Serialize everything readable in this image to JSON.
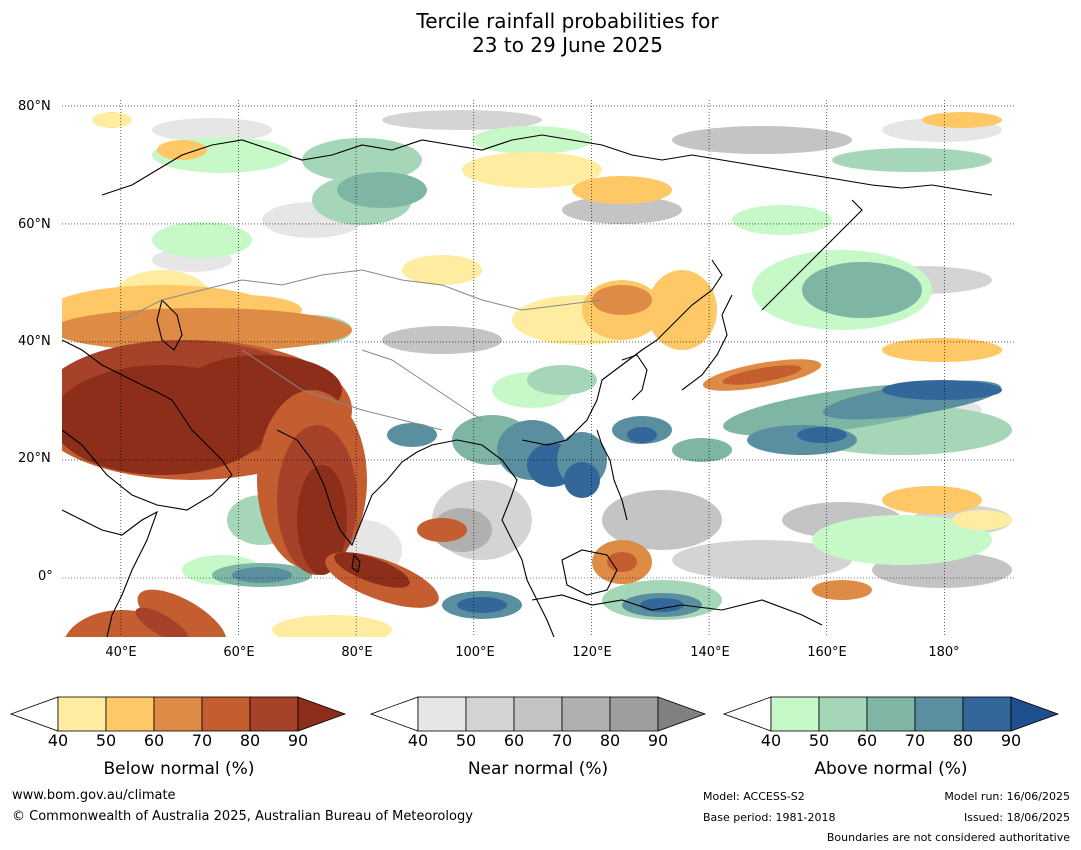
{
  "title_line1": "Tercile rainfall probabilities for",
  "title_line2": "23 to 29 June 2025",
  "map": {
    "lat_labels": [
      "80°N",
      "60°N",
      "40°N",
      "20°N",
      "0°"
    ],
    "lon_labels": [
      "40°E",
      "60°E",
      "80°E",
      "100°E",
      "120°E",
      "140°E",
      "160°E",
      "180°"
    ],
    "lon_range": [
      30,
      192
    ],
    "lat_range": [
      -10,
      81
    ],
    "colors": {
      "below": [
        "#feeca0",
        "#fdc865",
        "#de8c45",
        "#c45d30",
        "#a7422a",
        "#8c2e1a"
      ],
      "near": [
        "#e6e6e6",
        "#d4d4d4",
        "#c4c4c4",
        "#b0b0b0",
        "#9e9e9e",
        "#808080"
      ],
      "above": [
        "#c6f8c8",
        "#a5d6b8",
        "#7eb5a5",
        "#5a8f9f",
        "#336699",
        "#1e4f8f"
      ]
    }
  },
  "colorbars": [
    {
      "name": "below",
      "label": "Below normal (%)",
      "ticks": [
        "40",
        "50",
        "60",
        "70",
        "80",
        "90"
      ],
      "colors": [
        "#feeca0",
        "#fdc865",
        "#de8c45",
        "#c45d30",
        "#a7422a"
      ],
      "extend_color": "#8c2e1a"
    },
    {
      "name": "near",
      "label": "Near normal (%)",
      "ticks": [
        "40",
        "50",
        "60",
        "70",
        "80",
        "90"
      ],
      "colors": [
        "#e6e6e6",
        "#d4d4d4",
        "#c4c4c4",
        "#b0b0b0",
        "#9e9e9e"
      ],
      "extend_color": "#808080"
    },
    {
      "name": "above",
      "label": "Above normal (%)",
      "ticks": [
        "40",
        "50",
        "60",
        "70",
        "80",
        "90"
      ],
      "colors": [
        "#c6f8c8",
        "#a5d6b8",
        "#7eb5a5",
        "#5a8f9f",
        "#336699"
      ],
      "extend_color": "#1e4f8f"
    }
  ],
  "footer": {
    "website": "www.bom.gov.au/climate",
    "copyright": "© Commonwealth of Australia 2025, Australian Bureau of Meteorology",
    "model": "Model: ACCESS-S2",
    "base_period": "Base period: 1981-2018",
    "model_run": "Model run: 16/06/2025",
    "issued": "Issued: 18/06/2025",
    "disclaimer": "Boundaries are not considered authoritative"
  }
}
